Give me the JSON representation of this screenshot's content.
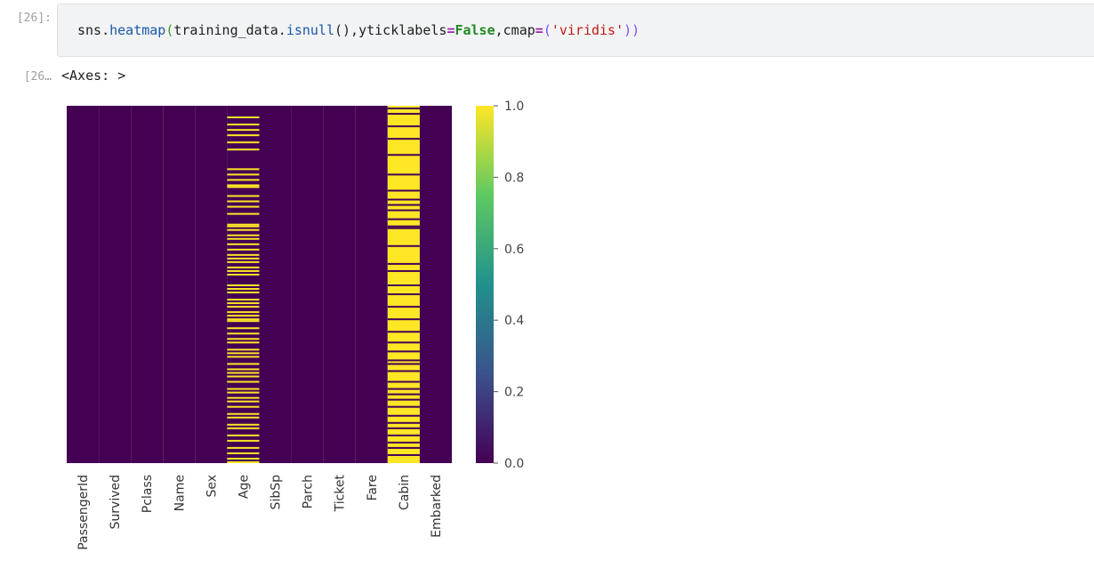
{
  "cell": {
    "in_prompt": "[26]:",
    "out_prompt": "[26…",
    "code": {
      "t1": "sns.",
      "t2": "heatmap",
      "t3": "(",
      "t4": "training_data.",
      "t5": "isnull",
      "t6": "(),yticklabels",
      "t7": "=",
      "t8": "False",
      "t9": ",cmap",
      "t10": "=",
      "t11": "(",
      "t12": "'viridis'",
      "t13": "))"
    },
    "output_text": "<Axes: >"
  },
  "colors": {
    "viridis_low": "#440154",
    "viridis_high": "#fde725"
  },
  "chart_data": {
    "type": "heatmap",
    "columns": [
      "PassengerId",
      "Survived",
      "Pclass",
      "Name",
      "Sex",
      "Age",
      "SibSp",
      "Parch",
      "Ticket",
      "Fare",
      "Cabin",
      "Embarked"
    ],
    "colorbar": {
      "cmap": "viridis",
      "range": [
        0.0,
        1.0
      ],
      "ticks": [
        {
          "value": 1.0,
          "label": "1.0"
        },
        {
          "value": 0.8,
          "label": "0.8"
        },
        {
          "value": 0.6,
          "label": "0.6"
        },
        {
          "value": 0.4,
          "label": "0.4"
        },
        {
          "value": 0.2,
          "label": "0.2"
        },
        {
          "value": 0.0,
          "label": "0.0"
        }
      ]
    },
    "yticklabels": false,
    "null_rows_by_column": {
      "Age": [
        0.03,
        0.05,
        0.065,
        0.08,
        0.1,
        0.12,
        0.175,
        0.19,
        0.205,
        0.22,
        0.225,
        0.25,
        0.265,
        0.28,
        0.3,
        0.33,
        0.335,
        0.345,
        0.36,
        0.37,
        0.385,
        0.4,
        0.415,
        0.425,
        0.435,
        0.45,
        0.46,
        0.47,
        0.5,
        0.51,
        0.52,
        0.54,
        0.55,
        0.56,
        0.575,
        0.585,
        0.595,
        0.6,
        0.62,
        0.635,
        0.65,
        0.66,
        0.68,
        0.69,
        0.7,
        0.72,
        0.735,
        0.745,
        0.755,
        0.77,
        0.79,
        0.8,
        0.815,
        0.825,
        0.84,
        0.86,
        0.87,
        0.89,
        0.9,
        0.92,
        0.935,
        0.955,
        0.97,
        0.985,
        0.995
      ],
      "Cabin_present_rows": [
        0.005,
        0.02,
        0.055,
        0.09,
        0.135,
        0.19,
        0.235,
        0.26,
        0.275,
        0.29,
        0.315,
        0.335,
        0.34,
        0.39,
        0.44,
        0.46,
        0.5,
        0.525,
        0.56,
        0.595,
        0.63,
        0.66,
        0.685,
        0.71,
        0.72,
        0.74,
        0.77,
        0.79,
        0.805,
        0.82,
        0.84,
        0.865,
        0.885,
        0.9,
        0.92,
        0.94,
        0.955,
        0.975
      ]
    }
  }
}
